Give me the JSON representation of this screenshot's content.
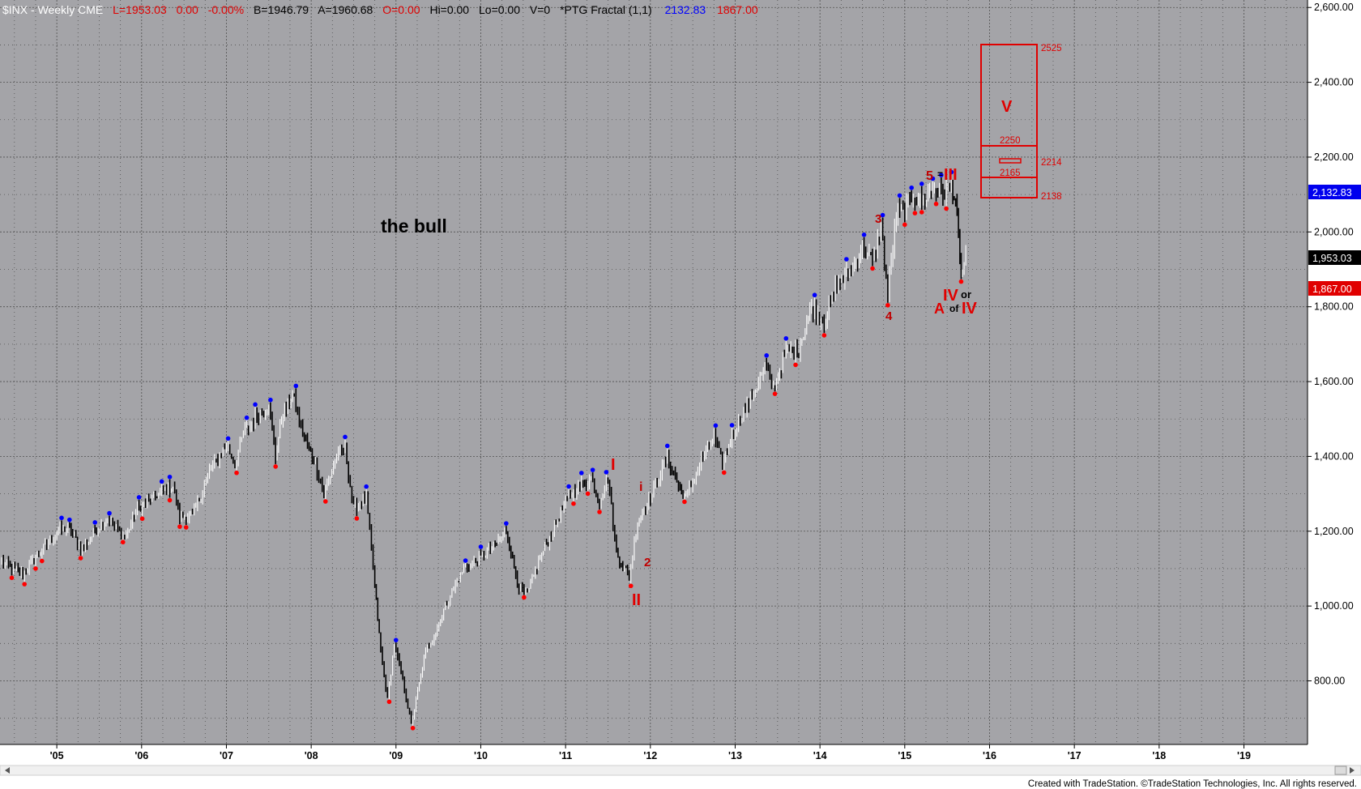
{
  "header": {
    "symbol": "$INX - Weekly  CME",
    "last": "L=1953.03",
    "change": "0.00",
    "change_pct": "-0.00%",
    "bid": "B=1946.79",
    "ask": "A=1960.68",
    "open": "O=0.00",
    "high": "Hi=0.00",
    "low": "Lo=0.00",
    "volume": "V=0",
    "indicator": "*PTG Fractal (1,1)",
    "ind_high": "2132.83",
    "ind_low": "1867.00"
  },
  "annotation_title": "the bull",
  "price_tags": {
    "high": "2,132.83",
    "last": "1,953.03",
    "low": "1,867.00"
  },
  "wave_labels": {
    "I": "I",
    "II": "II",
    "i": "i",
    "two": "2",
    "three": "3",
    "four": "4",
    "five": "5",
    "eq": "=",
    "III": "III",
    "IV": "IV",
    "or": "or",
    "A": "A",
    "of": "of",
    "IV2": "IV",
    "V": "V"
  },
  "target_box": {
    "top": "2525",
    "mid_top": "2250",
    "mid": "2214",
    "mid_bottom": "2165",
    "bottom": "2138"
  },
  "footer": "Created with TradeStation. ©TradeStation Technologies, Inc. All rights reserved.",
  "colors": {
    "plot_bg": "#a4a4a8",
    "up_bar": "#ffffff",
    "down_bar": "#000000",
    "fractal_high": "#0000ff",
    "fractal_low": "#ff0000",
    "wave_text": "#e00000",
    "grid": "#505050"
  },
  "chart_data": {
    "type": "line",
    "title": "$INX - Weekly",
    "xlabel": "",
    "ylabel": "",
    "y_ticks": [
      "800.00",
      "1,000.00",
      "1,200.00",
      "1,400.00",
      "1,600.00",
      "1,800.00",
      "2,000.00",
      "2,200.00",
      "2,400.00",
      "2,600.00"
    ],
    "y_tick_values": [
      800,
      1000,
      1200,
      1400,
      1600,
      1800,
      2000,
      2200,
      2400,
      2600
    ],
    "x_ticks": [
      "'05",
      "'06",
      "'07",
      "'08",
      "'09",
      "'10",
      "'11",
      "'12",
      "'13",
      "'14",
      "'15",
      "'16",
      "'17",
      "'18",
      "'19"
    ],
    "x_tick_values": [
      2005,
      2006,
      2007,
      2008,
      2009,
      2010,
      2011,
      2012,
      2013,
      2014,
      2015,
      2016,
      2017,
      2018,
      2019
    ],
    "xlim": [
      2004.33,
      2019.75
    ],
    "ylim": [
      630,
      2620
    ],
    "grid": true,
    "series": [
      {
        "values": [
          [
            2004.35,
            1120
          ],
          [
            2004.45,
            1105
          ],
          [
            2004.6,
            1085
          ],
          [
            2004.75,
            1130
          ],
          [
            2004.9,
            1170
          ],
          [
            2005.0,
            1200
          ],
          [
            2005.15,
            1210
          ],
          [
            2005.3,
            1150
          ],
          [
            2005.45,
            1200
          ],
          [
            2005.6,
            1235
          ],
          [
            2005.8,
            1180
          ],
          [
            2005.95,
            1260
          ],
          [
            2006.2,
            1300
          ],
          [
            2006.37,
            1320
          ],
          [
            2006.45,
            1240
          ],
          [
            2006.6,
            1240
          ],
          [
            2006.8,
            1360
          ],
          [
            2007.0,
            1430
          ],
          [
            2007.1,
            1380
          ],
          [
            2007.2,
            1460
          ],
          [
            2007.4,
            1520
          ],
          [
            2007.5,
            1540
          ],
          [
            2007.58,
            1400
          ],
          [
            2007.65,
            1500
          ],
          [
            2007.78,
            1565
          ],
          [
            2007.9,
            1460
          ],
          [
            2008.05,
            1380
          ],
          [
            2008.15,
            1300
          ],
          [
            2008.3,
            1400
          ],
          [
            2008.4,
            1420
          ],
          [
            2008.5,
            1260
          ],
          [
            2008.65,
            1290
          ],
          [
            2008.75,
            1050
          ],
          [
            2008.82,
            880
          ],
          [
            2008.9,
            750
          ],
          [
            2008.98,
            900
          ],
          [
            2009.1,
            780
          ],
          [
            2009.18,
            683
          ],
          [
            2009.35,
            880
          ],
          [
            2009.45,
            920
          ],
          [
            2009.6,
            1010
          ],
          [
            2009.8,
            1100
          ],
          [
            2010.0,
            1130
          ],
          [
            2010.15,
            1160
          ],
          [
            2010.3,
            1200
          ],
          [
            2010.45,
            1050
          ],
          [
            2010.55,
            1030
          ],
          [
            2010.7,
            1130
          ],
          [
            2010.85,
            1200
          ],
          [
            2011.0,
            1280
          ],
          [
            2011.15,
            1320
          ],
          [
            2011.3,
            1340
          ],
          [
            2011.4,
            1280
          ],
          [
            2011.5,
            1345
          ],
          [
            2011.6,
            1140
          ],
          [
            2011.75,
            1080
          ],
          [
            2011.85,
            1230
          ],
          [
            2012.0,
            1290
          ],
          [
            2012.2,
            1400
          ],
          [
            2012.35,
            1310
          ],
          [
            2012.42,
            1290
          ],
          [
            2012.6,
            1390
          ],
          [
            2012.75,
            1450
          ],
          [
            2012.85,
            1380
          ],
          [
            2013.0,
            1480
          ],
          [
            2013.2,
            1560
          ],
          [
            2013.35,
            1640
          ],
          [
            2013.45,
            1580
          ],
          [
            2013.6,
            1680
          ],
          [
            2013.75,
            1690
          ],
          [
            2013.9,
            1800
          ],
          [
            2014.05,
            1760
          ],
          [
            2014.2,
            1860
          ],
          [
            2014.35,
            1890
          ],
          [
            2014.5,
            1960
          ],
          [
            2014.62,
            1920
          ],
          [
            2014.72,
            2010
          ],
          [
            2014.8,
            1830
          ],
          [
            2014.9,
            2050
          ],
          [
            2015.0,
            2060
          ],
          [
            2015.1,
            2100
          ],
          [
            2015.2,
            2080
          ],
          [
            2015.35,
            2120
          ],
          [
            2015.45,
            2100
          ],
          [
            2015.55,
            2125
          ],
          [
            2015.6,
            2080
          ],
          [
            2015.65,
            1920
          ],
          [
            2015.68,
            1880
          ],
          [
            2015.72,
            1953
          ]
        ]
      }
    ]
  }
}
